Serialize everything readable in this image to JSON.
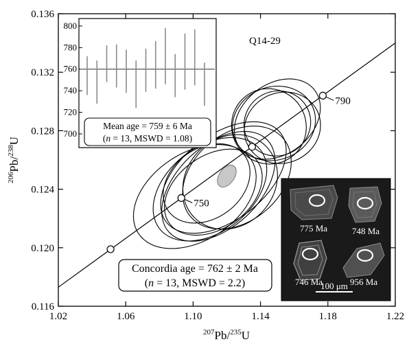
{
  "chart_data": {
    "type": "scatter",
    "sample": "Q14-29",
    "xlabel": {
      "sup1": "207",
      "base1": "Pb/",
      "sup2": "235",
      "base2": "U"
    },
    "ylabel": {
      "sup1": "206",
      "base1": "Pb/",
      "sup2": "238",
      "base2": "U"
    },
    "xlim": [
      1.02,
      1.22
    ],
    "ylim": [
      0.116,
      0.136
    ],
    "xticks": [
      "1.02",
      "1.06",
      "1.10",
      "1.14",
      "1.18",
      "1.22"
    ],
    "yticks": [
      "0.116",
      "0.120",
      "0.124",
      "0.128",
      "0.132",
      "0.136"
    ],
    "concordia": {
      "line": [
        [
          1.02,
          0.1173
        ],
        [
          1.22,
          0.134
        ]
      ],
      "markers": [
        {
          "x": 1.051,
          "y": 0.1199,
          "label": ""
        },
        {
          "x": 1.093,
          "y": 0.1234,
          "label": "750"
        },
        {
          "x": 1.135,
          "y": 0.1269,
          "label": ""
        },
        {
          "x": 1.177,
          "y": 0.1304,
          "label": "790"
        }
      ]
    },
    "ellipses": [
      {
        "cx": 1.101,
        "cy": 0.1235,
        "rx": 0.04,
        "ry": 0.003,
        "angle": 33
      },
      {
        "cx": 1.11,
        "cy": 0.124,
        "rx": 0.038,
        "ry": 0.0029,
        "angle": 38
      },
      {
        "cx": 1.115,
        "cy": 0.1242,
        "rx": 0.04,
        "ry": 0.0028,
        "angle": 43
      },
      {
        "cx": 1.118,
        "cy": 0.1248,
        "rx": 0.043,
        "ry": 0.0029,
        "angle": 38
      },
      {
        "cx": 1.112,
        "cy": 0.1238,
        "rx": 0.032,
        "ry": 0.0025,
        "angle": 35
      },
      {
        "cx": 1.122,
        "cy": 0.1245,
        "rx": 0.03,
        "ry": 0.003,
        "angle": 45
      },
      {
        "cx": 1.108,
        "cy": 0.1244,
        "rx": 0.028,
        "ry": 0.0024,
        "angle": 36
      },
      {
        "cx": 1.126,
        "cy": 0.1248,
        "rx": 0.036,
        "ry": 0.003,
        "angle": 40
      },
      {
        "cx": 1.148,
        "cy": 0.1285,
        "rx": 0.025,
        "ry": 0.0025,
        "angle": 20
      },
      {
        "cx": 1.15,
        "cy": 0.1288,
        "rx": 0.028,
        "ry": 0.0024,
        "angle": 38
      },
      {
        "cx": 1.153,
        "cy": 0.1282,
        "rx": 0.023,
        "ry": 0.0024,
        "angle": 25
      },
      {
        "cx": 1.15,
        "cy": 0.1285,
        "rx": 0.02,
        "ry": 0.0022,
        "angle": 30
      },
      {
        "cx": 1.145,
        "cy": 0.1283,
        "rx": 0.022,
        "ry": 0.0026,
        "angle": 35
      }
    ],
    "concordia_age": {
      "x": 1.12,
      "y": 0.1249,
      "line1": "Concordia age = 762 ± 2 Ma",
      "line2_n": "n",
      "line2_rest": " = 13, MSWD = 2.2)"
    },
    "inset_mean_age": {
      "ylim": [
        700,
        805
      ],
      "yticks": [
        "700",
        "720",
        "740",
        "760",
        "780",
        "800"
      ],
      "mean": 760,
      "bars": [
        {
          "center": 754,
          "error": 18
        },
        {
          "center": 748,
          "error": 20
        },
        {
          "center": 765,
          "error": 17
        },
        {
          "center": 763,
          "error": 20
        },
        {
          "center": 758,
          "error": 20
        },
        {
          "center": 746,
          "error": 22
        },
        {
          "center": 759,
          "error": 20
        },
        {
          "center": 764,
          "error": 22
        },
        {
          "center": 772,
          "error": 26
        },
        {
          "center": 754,
          "error": 20
        },
        {
          "center": 767,
          "error": 26
        },
        {
          "center": 771,
          "error": 26
        },
        {
          "center": 746,
          "error": 20
        }
      ],
      "line1": "Mean age = 759 ± 6 Ma",
      "line2_n": "n",
      "line2_rest": " = 13, MSWD = 1.08)"
    },
    "cl_inset": {
      "grains": [
        "775 Ma",
        "748 Ma",
        "746 Ma",
        "956 Ma"
      ],
      "scale_label": "100 μm"
    }
  }
}
